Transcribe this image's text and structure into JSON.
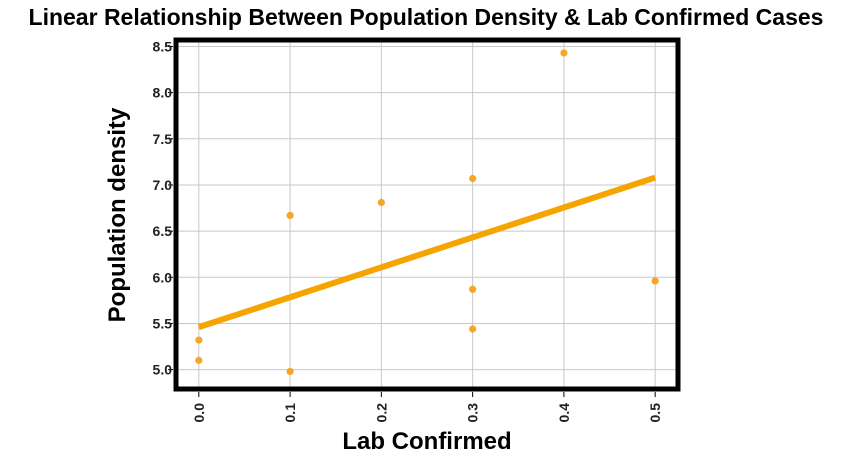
{
  "chart_data": {
    "type": "scatter",
    "title": "Linear Relationship Between Population Density & Lab Confirmed Cases",
    "xlabel": "Lab Confirmed",
    "ylabel": "Population density",
    "xlim": [
      -0.025,
      0.525
    ],
    "ylim": [
      4.79,
      8.57
    ],
    "xticks": [
      "0.0",
      "0.1",
      "0.2",
      "0.3",
      "0.4",
      "0.5"
    ],
    "xtick_values": [
      0.0,
      0.1,
      0.2,
      0.3,
      0.4,
      0.5
    ],
    "yticks": [
      "5.0",
      "5.5",
      "6.0",
      "6.5",
      "7.0",
      "7.5",
      "8.0",
      "8.5"
    ],
    "ytick_values": [
      5.0,
      5.5,
      6.0,
      6.5,
      7.0,
      7.5,
      8.0,
      8.5
    ],
    "grid": true,
    "points": [
      {
        "x": 0.0,
        "y": 5.32
      },
      {
        "x": 0.0,
        "y": 5.1
      },
      {
        "x": 0.1,
        "y": 6.67
      },
      {
        "x": 0.1,
        "y": 4.98
      },
      {
        "x": 0.2,
        "y": 6.81
      },
      {
        "x": 0.3,
        "y": 7.07
      },
      {
        "x": 0.3,
        "y": 5.87
      },
      {
        "x": 0.3,
        "y": 5.44
      },
      {
        "x": 0.4,
        "y": 8.43
      },
      {
        "x": 0.5,
        "y": 5.96
      }
    ],
    "trendline": {
      "x": [
        0.0,
        0.5
      ],
      "y": [
        5.46,
        7.08
      ]
    },
    "colors": {
      "points": "#f5a623",
      "trendline": "#f5a400",
      "grid": "#c8c8c8",
      "frame": "#000000"
    }
  }
}
